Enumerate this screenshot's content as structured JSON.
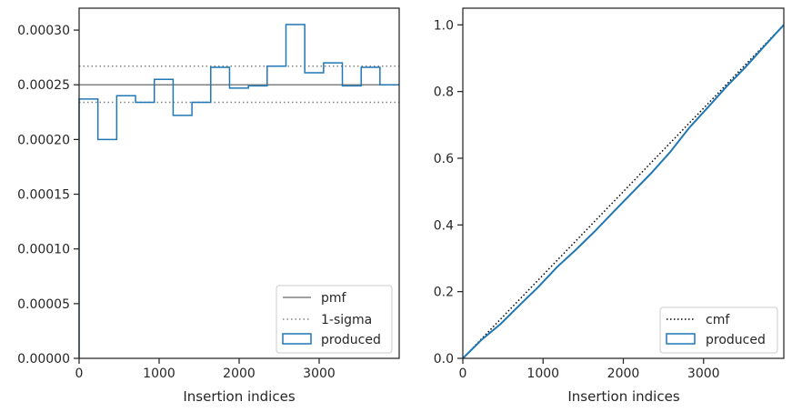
{
  "colors": {
    "produced": "#1f77b4",
    "pmf": "#808080",
    "sigma": "#808080",
    "cmf": "#000000",
    "axes": "#262626"
  },
  "chart_data": [
    {
      "type": "line",
      "xlabel": "Insertion indices",
      "ylabel": "",
      "xlim": [
        0,
        4000
      ],
      "ylim": [
        0,
        0.00032
      ],
      "x_ticks": [
        0,
        1000,
        2000,
        3000
      ],
      "x_tick_labels": [
        "0",
        "1000",
        "2000",
        "3000"
      ],
      "y_ticks": [
        0,
        5e-05,
        0.0001,
        0.00015,
        0.0002,
        0.00025,
        0.0003
      ],
      "y_tick_labels": [
        "0.00000",
        "0.00005",
        "0.00010",
        "0.00015",
        "0.00020",
        "0.00025",
        "0.00030"
      ],
      "grid": false,
      "legend_position": "lower-right",
      "legend": [
        "pmf",
        "1-sigma",
        "produced"
      ],
      "pmf": 0.00025,
      "sigma_band": [
        0.000234,
        0.000267
      ],
      "produced": {
        "name": "produced",
        "bin_edges": [
          0,
          235,
          470,
          705,
          940,
          1175,
          1410,
          1645,
          1880,
          2115,
          2350,
          2585,
          2820,
          3055,
          3290,
          3525,
          3760,
          4000
        ],
        "values": [
          0.000237,
          0.0002,
          0.00024,
          0.000234,
          0.000255,
          0.000222,
          0.000234,
          0.000266,
          0.000247,
          0.000249,
          0.000267,
          0.000305,
          0.000261,
          0.00027,
          0.000249,
          0.000266,
          0.00025
        ]
      }
    },
    {
      "type": "line",
      "xlabel": "Insertion indices",
      "ylabel": "",
      "xlim": [
        0,
        4000
      ],
      "ylim": [
        0,
        1.05
      ],
      "x_ticks": [
        0,
        1000,
        2000,
        3000
      ],
      "x_tick_labels": [
        "0",
        "1000",
        "2000",
        "3000"
      ],
      "y_ticks": [
        0,
        0.2,
        0.4,
        0.6,
        0.8,
        1.0
      ],
      "y_tick_labels": [
        "0.0",
        "0.2",
        "0.4",
        "0.6",
        "0.8",
        "1.0"
      ],
      "grid": false,
      "legend_position": "lower-right",
      "legend": [
        "cmf",
        "produced"
      ],
      "cmf": {
        "x": [
          0,
          4000
        ],
        "y": [
          0,
          1.0
        ]
      },
      "produced": {
        "name": "produced",
        "x": [
          0,
          235,
          470,
          705,
          940,
          1175,
          1410,
          1645,
          1880,
          2115,
          2350,
          2585,
          2820,
          3055,
          3290,
          3525,
          3760,
          4000
        ],
        "y": [
          0,
          0.056,
          0.103,
          0.159,
          0.214,
          0.274,
          0.326,
          0.381,
          0.44,
          0.498,
          0.556,
          0.619,
          0.691,
          0.753,
          0.816,
          0.874,
          0.937,
          1.0
        ]
      }
    }
  ]
}
